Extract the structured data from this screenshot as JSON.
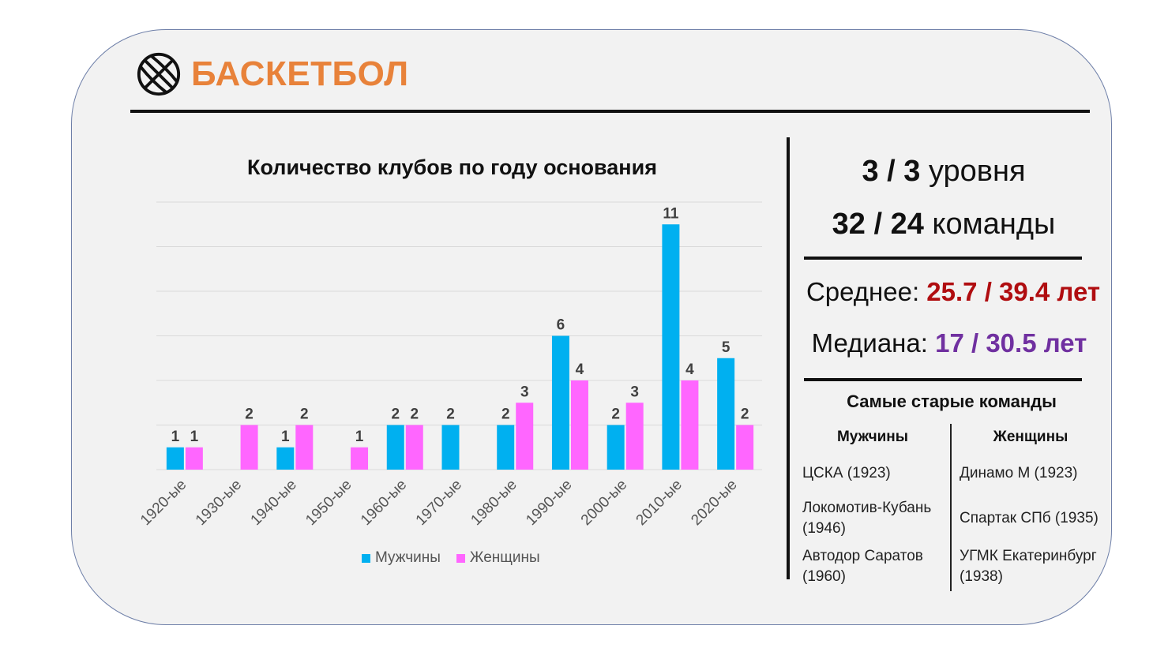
{
  "header": {
    "title": "БАСКЕТБОЛ",
    "icon": "basketball-icon"
  },
  "chart_data": {
    "type": "bar",
    "title": "Количество клубов по году основания",
    "categories": [
      "1920-ые",
      "1930-ые",
      "1940-ые",
      "1950-ые",
      "1960-ые",
      "1970-ые",
      "1980-ые",
      "1990-ые",
      "2000-ые",
      "2010-ые",
      "2020-ые"
    ],
    "series": [
      {
        "name": "Мужчины",
        "color": "#00b0f0",
        "values": [
          1,
          0,
          1,
          0,
          2,
          2,
          2,
          6,
          2,
          11,
          5
        ]
      },
      {
        "name": "Женщины",
        "color": "#ff66ff",
        "values": [
          1,
          2,
          2,
          1,
          2,
          0,
          3,
          4,
          3,
          4,
          2
        ]
      }
    ],
    "ylim": [
      0,
      12
    ],
    "grid": true,
    "legend": "bottom",
    "data_labels": true
  },
  "stats": {
    "levels_value": "3 / 3",
    "levels_label": "уровня",
    "teams_value": "32 / 24",
    "teams_label": "команды",
    "mean_label": "Среднее:",
    "mean_value": "25.7 / 39.4 лет",
    "median_label": "Медиана:",
    "median_value": "17 / 30.5 лет"
  },
  "oldest": {
    "title": "Самые старые команды",
    "men_header": "Мужчины",
    "women_header": "Женщины",
    "men": [
      "ЦСКА (1923)",
      "Локомотив-Кубань (1946)",
      "Автодор Саратов (1960)"
    ],
    "women": [
      "Динамо М (1923)",
      "Спартак СПб (1935)",
      "УГМК Екатеринбург (1938)"
    ]
  }
}
